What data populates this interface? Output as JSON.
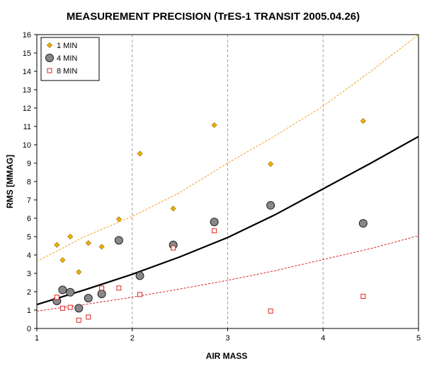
{
  "chart_data": {
    "type": "scatter",
    "title": "MEASUREMENT PRECISION (TrES-1 TRANSIT 2005.04.26)",
    "xlabel": "AIR MASS",
    "ylabel": "RMS [MMAG]",
    "xlim": [
      1,
      5
    ],
    "ylim": [
      0,
      16
    ],
    "x_ticks": [
      "1",
      "2",
      "3",
      "4",
      "5"
    ],
    "y_ticks": [
      "0",
      "1",
      "2",
      "3",
      "4",
      "5",
      "6",
      "7",
      "8",
      "9",
      "10",
      "11",
      "12",
      "13",
      "14",
      "15",
      "16"
    ],
    "grid": "vertical dashed",
    "legend_position": "top-left",
    "series": [
      {
        "name": "1 MIN",
        "marker": "diamond",
        "color": "#f0b000",
        "points": [
          [
            1.21,
            4.55
          ],
          [
            1.27,
            3.72
          ],
          [
            1.35,
            5.0
          ],
          [
            1.44,
            3.07
          ],
          [
            1.54,
            4.65
          ],
          [
            1.68,
            4.45
          ],
          [
            1.86,
            5.95
          ],
          [
            2.08,
            9.52
          ],
          [
            2.43,
            6.53
          ],
          [
            2.86,
            11.07
          ],
          [
            3.45,
            8.95
          ],
          [
            4.42,
            11.3
          ]
        ]
      },
      {
        "name": "4 MIN",
        "marker": "circle",
        "color": "#888888",
        "points": [
          [
            1.21,
            1.5
          ],
          [
            1.27,
            2.1
          ],
          [
            1.35,
            1.97
          ],
          [
            1.44,
            1.1
          ],
          [
            1.54,
            1.65
          ],
          [
            1.68,
            1.88
          ],
          [
            1.86,
            4.8
          ],
          [
            2.08,
            2.87
          ],
          [
            2.43,
            4.55
          ],
          [
            2.86,
            5.8
          ],
          [
            3.45,
            6.7
          ],
          [
            4.42,
            5.72
          ]
        ]
      },
      {
        "name": "8 MIN",
        "marker": "square",
        "color": "#dd2222",
        "points": [
          [
            1.21,
            1.7
          ],
          [
            1.27,
            1.1
          ],
          [
            1.35,
            1.15
          ],
          [
            1.44,
            0.45
          ],
          [
            1.54,
            0.62
          ],
          [
            1.68,
            2.2
          ],
          [
            1.86,
            2.2
          ],
          [
            2.08,
            1.85
          ],
          [
            2.43,
            4.38
          ],
          [
            2.86,
            5.32
          ],
          [
            3.45,
            0.95
          ],
          [
            4.42,
            1.75
          ]
        ]
      }
    ],
    "trend_lines": [
      {
        "style": "dashed",
        "color": "#f0a020",
        "points": [
          [
            1,
            3.65
          ],
          [
            1.5,
            5.0
          ],
          [
            2,
            6.1
          ],
          [
            2.5,
            7.4
          ],
          [
            3,
            9.0
          ],
          [
            3.5,
            10.5
          ],
          [
            4,
            12.1
          ],
          [
            4.5,
            14.0
          ],
          [
            5,
            16.0
          ]
        ]
      },
      {
        "style": "solid",
        "color": "#000000",
        "points": [
          [
            1,
            1.3
          ],
          [
            1.5,
            2.1
          ],
          [
            2,
            2.95
          ],
          [
            2.5,
            3.9
          ],
          [
            3,
            4.95
          ],
          [
            3.5,
            6.2
          ],
          [
            4,
            7.6
          ],
          [
            4.5,
            9.0
          ],
          [
            5,
            10.45
          ]
        ]
      },
      {
        "style": "dashed",
        "color": "#dd2222",
        "points": [
          [
            1,
            0.95
          ],
          [
            1.5,
            1.3
          ],
          [
            2,
            1.7
          ],
          [
            2.5,
            2.15
          ],
          [
            3,
            2.62
          ],
          [
            3.5,
            3.15
          ],
          [
            4,
            3.75
          ],
          [
            4.5,
            4.35
          ],
          [
            5,
            5.05
          ]
        ]
      }
    ]
  }
}
